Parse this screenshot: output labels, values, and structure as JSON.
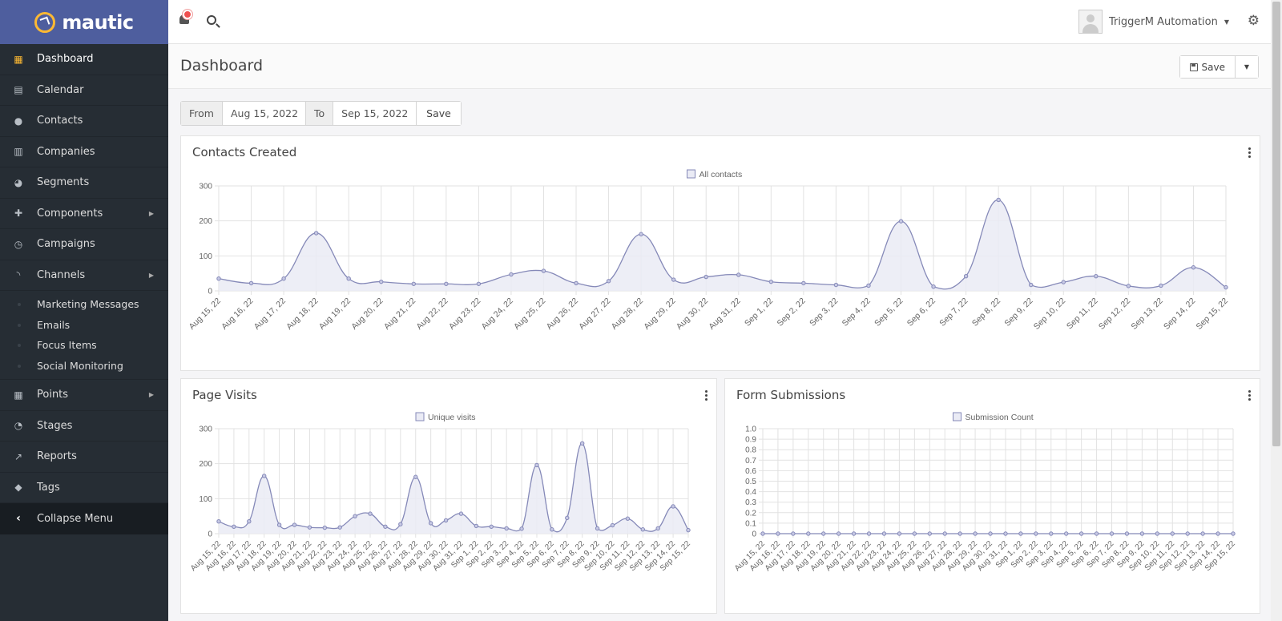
{
  "brand": {
    "name": "mautic"
  },
  "sidebar": {
    "items": [
      {
        "label": "Dashboard",
        "icon": "dashboard-icon",
        "active": true
      },
      {
        "label": "Calendar",
        "icon": "calendar-icon"
      },
      {
        "label": "Contacts",
        "icon": "user-icon"
      },
      {
        "label": "Companies",
        "icon": "building-icon"
      },
      {
        "label": "Segments",
        "icon": "pie-icon"
      },
      {
        "label": "Components",
        "icon": "puzzle-icon",
        "expandable": true
      },
      {
        "label": "Campaigns",
        "icon": "clock-icon"
      },
      {
        "label": "Channels",
        "icon": "rss-icon",
        "expandable": true
      }
    ],
    "channels_sub": [
      "Marketing Messages",
      "Emails",
      "Focus Items",
      "Social Monitoring"
    ],
    "items_after": [
      {
        "label": "Points",
        "icon": "calculator-icon",
        "expandable": true
      },
      {
        "label": "Stages",
        "icon": "tachometer-icon"
      },
      {
        "label": "Reports",
        "icon": "line-chart-icon"
      },
      {
        "label": "Tags",
        "icon": "tag-icon"
      }
    ],
    "collapse_label": "Collapse Menu"
  },
  "topbar": {
    "user_name": "TriggerM Automation"
  },
  "header": {
    "title": "Dashboard",
    "save_label": "Save"
  },
  "date_filter": {
    "from_label": "From",
    "from_value": "Aug 15, 2022",
    "to_label": "To",
    "to_value": "Sep 15, 2022",
    "save_label": "Save"
  },
  "colors": {
    "line": "#8589b8",
    "fill": "#eaebf5",
    "grid": "#e2e2e2",
    "axis_text": "#666666"
  },
  "chart_data": [
    {
      "type": "area",
      "title": "Contacts Created",
      "legend": "All contacts",
      "ylim": [
        0,
        300
      ],
      "yticks": [
        0,
        100,
        200,
        300
      ],
      "categories": [
        "Aug 15, 22",
        "Aug 16, 22",
        "Aug 17, 22",
        "Aug 18, 22",
        "Aug 19, 22",
        "Aug 20, 22",
        "Aug 21, 22",
        "Aug 22, 22",
        "Aug 23, 22",
        "Aug 24, 22",
        "Aug 25, 22",
        "Aug 26, 22",
        "Aug 27, 22",
        "Aug 28, 22",
        "Aug 29, 22",
        "Aug 30, 22",
        "Aug 31, 22",
        "Sep 1, 22",
        "Sep 2, 22",
        "Sep 3, 22",
        "Sep 4, 22",
        "Sep 5, 22",
        "Sep 6, 22",
        "Sep 7, 22",
        "Sep 8, 22",
        "Sep 9, 22",
        "Sep 10, 22",
        "Sep 11, 22",
        "Sep 12, 22",
        "Sep 13, 22",
        "Sep 14, 22",
        "Sep 15, 22"
      ],
      "values": [
        35,
        22,
        35,
        165,
        35,
        26,
        20,
        20,
        20,
        47,
        57,
        22,
        28,
        162,
        32,
        40,
        46,
        26,
        22,
        17,
        15,
        199,
        12,
        42,
        260,
        17,
        25,
        42,
        14,
        15,
        67,
        10
      ]
    },
    {
      "type": "area",
      "title": "Page Visits",
      "legend": "Unique visits",
      "ylim": [
        0,
        300
      ],
      "yticks": [
        0,
        100,
        200,
        300
      ],
      "categories": [
        "Aug 15, 22",
        "Aug 16, 22",
        "Aug 17, 22",
        "Aug 18, 22",
        "Aug 19, 22",
        "Aug 20, 22",
        "Aug 21, 22",
        "Aug 22, 22",
        "Aug 23, 22",
        "Aug 24, 22",
        "Aug 25, 22",
        "Aug 26, 22",
        "Aug 27, 22",
        "Aug 28, 22",
        "Aug 29, 22",
        "Aug 30, 22",
        "Aug 31, 22",
        "Sep 1, 22",
        "Sep 2, 22",
        "Sep 3, 22",
        "Sep 4, 22",
        "Sep 5, 22",
        "Sep 6, 22",
        "Sep 7, 22",
        "Sep 8, 22",
        "Sep 9, 22",
        "Sep 10, 22",
        "Sep 11, 22",
        "Sep 12, 22",
        "Sep 13, 22",
        "Sep 14, 22",
        "Sep 15, 22"
      ],
      "values": [
        35,
        20,
        35,
        165,
        25,
        25,
        18,
        17,
        18,
        50,
        57,
        20,
        27,
        162,
        30,
        38,
        57,
        22,
        20,
        15,
        14,
        196,
        12,
        45,
        258,
        15,
        24,
        43,
        12,
        15,
        78,
        10
      ]
    },
    {
      "type": "line",
      "title": "Form Submissions",
      "legend": "Submission Count",
      "ylim": [
        0,
        1
      ],
      "yticks": [
        0,
        0.1,
        0.2,
        0.3,
        0.4,
        0.5,
        0.6,
        0.7,
        0.8,
        0.9,
        1.0
      ],
      "categories": [
        "Aug 15, 22",
        "Aug 16, 22",
        "Aug 17, 22",
        "Aug 18, 22",
        "Aug 19, 22",
        "Aug 20, 22",
        "Aug 21, 22",
        "Aug 22, 22",
        "Aug 23, 22",
        "Aug 24, 22",
        "Aug 25, 22",
        "Aug 26, 22",
        "Aug 27, 22",
        "Aug 28, 22",
        "Aug 29, 22",
        "Aug 30, 22",
        "Aug 31, 22",
        "Sep 1, 22",
        "Sep 2, 22",
        "Sep 3, 22",
        "Sep 4, 22",
        "Sep 5, 22",
        "Sep 6, 22",
        "Sep 7, 22",
        "Sep 8, 22",
        "Sep 9, 22",
        "Sep 10, 22",
        "Sep 11, 22",
        "Sep 12, 22",
        "Sep 13, 22",
        "Sep 14, 22",
        "Sep 15, 22"
      ],
      "values": [
        0,
        0,
        0,
        0,
        0,
        0,
        0,
        0,
        0,
        0,
        0,
        0,
        0,
        0,
        0,
        0,
        0,
        0,
        0,
        0,
        0,
        0,
        0,
        0,
        0,
        0,
        0,
        0,
        0,
        0,
        0,
        0
      ]
    }
  ]
}
